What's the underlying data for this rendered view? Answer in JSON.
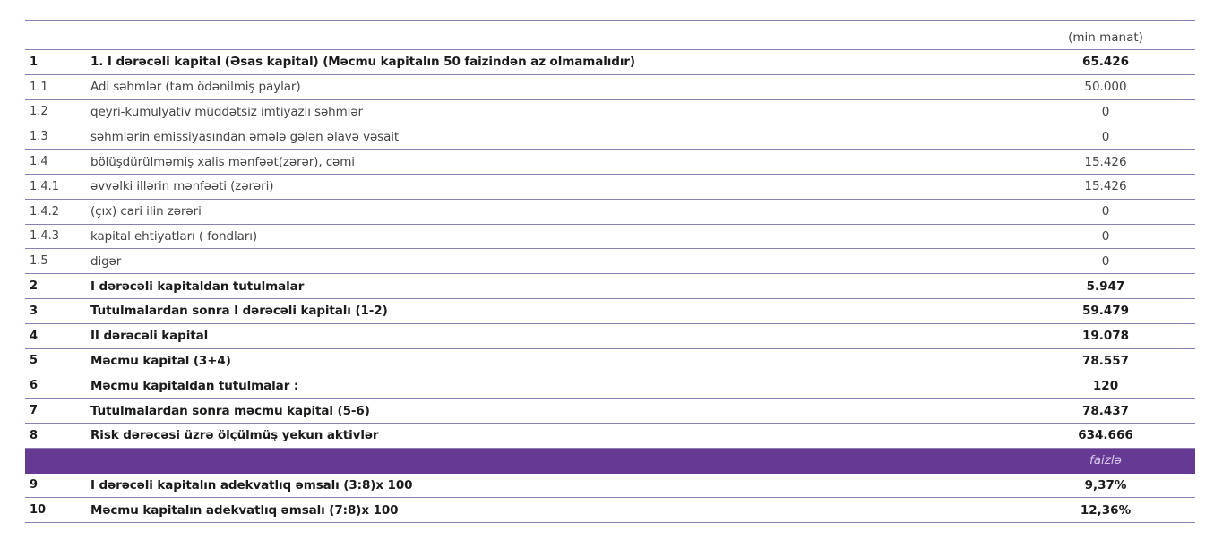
{
  "unit_label": "(min manat)",
  "percent_label": "faizlə",
  "colors": {
    "band": "#663a93",
    "rule": "#8e7fb0"
  },
  "rows": [
    {
      "num": "1",
      "label": "1. I dərəcəli kapital (Əsas kapital) (Məcmu kapitalın 50 faizindən az olmamalıdır)",
      "value": "65.426",
      "bold": true
    },
    {
      "num": "1.1",
      "label": "Adi səhmlər (tam ödənilmiş paylar)",
      "value": "50.000",
      "bold": false
    },
    {
      "num": "1.2",
      "label": "qeyri-kumulyativ müddətsiz imtiyazlı səhmlər",
      "value": "0",
      "bold": false
    },
    {
      "num": "1.3",
      "label": "səhmlərin emissiyasından əmələ gələn əlavə vəsait",
      "value": "0",
      "bold": false
    },
    {
      "num": "1.4",
      "label": "bölüşdürülməmiş xalis mənfəət(zərər), cəmi",
      "value": "15.426",
      "bold": false
    },
    {
      "num": "1.4.1",
      "label": "əvvəlki illərin mənfəəti (zərəri)",
      "value": "15.426",
      "bold": false
    },
    {
      "num": "1.4.2",
      "label": " (çıx) cari ilin zərəri",
      "value": "0",
      "bold": false
    },
    {
      "num": "1.4.3",
      "label": "kapital ehtiyatları ( fondları)",
      "value": "0",
      "bold": false
    },
    {
      "num": "1.5",
      "label": "digər",
      "value": "0",
      "bold": false
    },
    {
      "num": "2",
      "label": "I dərəcəli kapitaldan tutulmalar",
      "value": "5.947",
      "bold": true
    },
    {
      "num": "3",
      "label": "Tutulmalardan sonra I dərəcəli kapitalı (1-2)",
      "value": "59.479",
      "bold": true
    },
    {
      "num": "4",
      "label": "II dərəcəli kapital",
      "value": "19.078",
      "bold": true
    },
    {
      "num": "5",
      "label": "Məcmu kapital  (3+4)",
      "value": "78.557",
      "bold": true
    },
    {
      "num": "6",
      "label": "Məcmu kapitaldan tutulmalar :",
      "value": "120",
      "bold": true
    },
    {
      "num": "7",
      "label": "Tutulmalardan sonra məcmu kapital (5-6)",
      "value": "78.437",
      "bold": true
    },
    {
      "num": "8",
      "label": "Risk dərəcəsi üzrə ölçülmüş yekun aktivlər",
      "value": "634.666",
      "bold": true
    }
  ],
  "ratio_rows": [
    {
      "num": "9",
      "label": "I dərəcəli kapitalın adekvatlıq əmsalı  (3:8)x 100",
      "value": "9,37%"
    },
    {
      "num": "10",
      "label": "Məcmu kapitalın adekvatlıq əmsalı (7:8)x 100",
      "value": "12,36%"
    }
  ]
}
